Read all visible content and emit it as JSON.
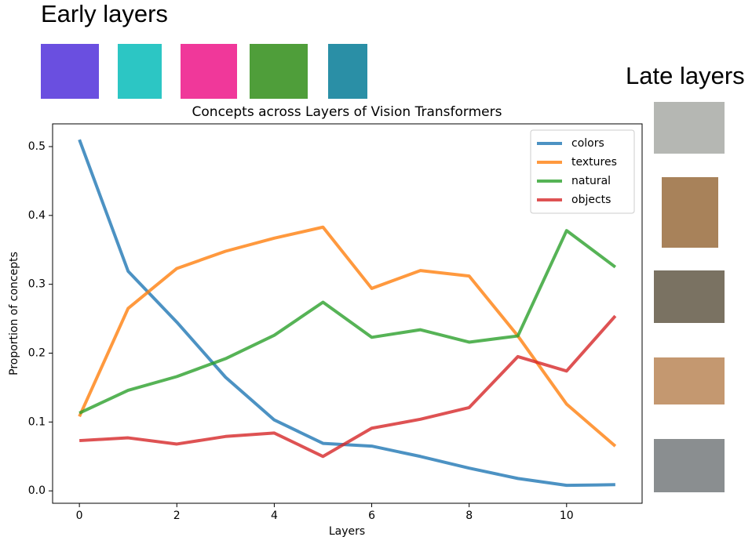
{
  "header": {
    "early": "Early layers",
    "late": "Late layers"
  },
  "chart_data": {
    "type": "line",
    "title": "Concepts across Layers of Vision Transformers",
    "xlabel": "Layers",
    "ylabel": "Proportion of concepts",
    "x": [
      0,
      1,
      2,
      3,
      4,
      5,
      6,
      7,
      8,
      9,
      10,
      11
    ],
    "series": [
      {
        "name": "colors",
        "color": "#1f77b4",
        "values": [
          0.51,
          0.319,
          0.245,
          0.165,
          0.103,
          0.069,
          0.065,
          0.05,
          0.033,
          0.018,
          0.008,
          0.009
        ]
      },
      {
        "name": "textures",
        "color": "#ff7f0e",
        "values": [
          0.108,
          0.265,
          0.323,
          0.348,
          0.367,
          0.383,
          0.294,
          0.32,
          0.312,
          0.225,
          0.126,
          0.065
        ]
      },
      {
        "name": "natural",
        "color": "#2ca02c",
        "values": [
          0.113,
          0.146,
          0.166,
          0.192,
          0.226,
          0.274,
          0.223,
          0.234,
          0.216,
          0.225,
          0.378,
          0.325
        ]
      },
      {
        "name": "objects",
        "color": "#d62728",
        "values": [
          0.073,
          0.077,
          0.068,
          0.079,
          0.084,
          0.05,
          0.091,
          0.104,
          0.121,
          0.195,
          0.174,
          0.254
        ]
      }
    ],
    "xlim": [
      -0.55,
      11.55
    ],
    "xticks": [
      0,
      2,
      4,
      6,
      8,
      10
    ],
    "ylim": [
      -0.018,
      0.533
    ],
    "yticks": [
      {
        "value": 0,
        "label": "0.0"
      },
      0.1,
      0.2,
      0.3,
      0.4,
      0.5
    ],
    "legend": "upper right"
  }
}
